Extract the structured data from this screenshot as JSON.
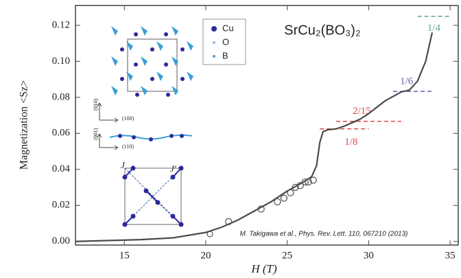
{
  "chart_data": {
    "type": "line",
    "title": "SrCu₂(BO₃)₂",
    "x_label": "H (T)",
    "y_label": "Magnetization <Sz>",
    "citation": "M. Takigawa et al., Phys. Rev. Lett. 110, 067210 (2013)",
    "xlim": [
      12,
      35.5
    ],
    "ylim": [
      -0.002,
      0.131
    ],
    "xticks": [
      15,
      20,
      25,
      30,
      35
    ],
    "yticks": [
      {
        "value": 0,
        "label": "0.00"
      },
      {
        "value": 0.02,
        "label": "0.02"
      },
      {
        "value": 0.04,
        "label": "0.04"
      },
      {
        "value": 0.06,
        "label": "0.06"
      },
      {
        "value": 0.08,
        "label": "0.08"
      },
      {
        "value": 0.1,
        "label": "0.10"
      },
      {
        "value": 0.12,
        "label": "0.12"
      }
    ],
    "series": [
      {
        "style": "line",
        "color": "#4a4a4a",
        "x": [
          12,
          16,
          18,
          20,
          21,
          22,
          23,
          24,
          25,
          26,
          26.5,
          26.8,
          27.0,
          27.2,
          27.5,
          28.0,
          28.5,
          29.0,
          29.5,
          30.0,
          31.0,
          32.0,
          32.5,
          33.0,
          33.5,
          33.9
        ],
        "values": [
          0,
          0.001,
          0.002,
          0.005,
          0.008,
          0.012,
          0.017,
          0.022,
          0.028,
          0.033,
          0.036,
          0.042,
          0.055,
          0.061,
          0.062,
          0.0625,
          0.064,
          0.066,
          0.068,
          0.071,
          0.078,
          0.083,
          0.084,
          0.089,
          0.1,
          0.116
        ]
      },
      {
        "style": "markers",
        "color": "#555555",
        "x": [
          21.4,
          23.4,
          24.4,
          24.8,
          25.2,
          25.5,
          25.8,
          26.1,
          26.3,
          26.6
        ],
        "values": [
          0.011,
          0.018,
          0.022,
          0.024,
          0.027,
          0.03,
          0.031,
          0.033,
          0.033,
          0.034
        ]
      }
    ],
    "reference_lines": [
      {
        "label": "1/4",
        "value": 0.125,
        "x": [
          33.0,
          35.0
        ],
        "color": "#5aa39a"
      },
      {
        "label": "1/6",
        "value": 0.0833,
        "x": [
          31.5,
          34.0
        ],
        "color": "#5c5fb0"
      },
      {
        "label": "2/15",
        "value": 0.0667,
        "x": [
          28.0,
          32.0
        ],
        "color": "#e0484a"
      },
      {
        "label": "1/8",
        "value": 0.0625,
        "x": [
          27.0,
          30.0
        ],
        "color": "#e0484a"
      }
    ],
    "inset_legend": [
      {
        "name": "Cu",
        "color": "#2a2a9a"
      },
      {
        "name": "O",
        "color": "#8fb8e0"
      },
      {
        "name": "B",
        "color": "#5a9ad0"
      }
    ],
    "inset_labels": [
      "(010)",
      "(100)",
      "(001)",
      "(110)",
      "J",
      "J'"
    ]
  }
}
